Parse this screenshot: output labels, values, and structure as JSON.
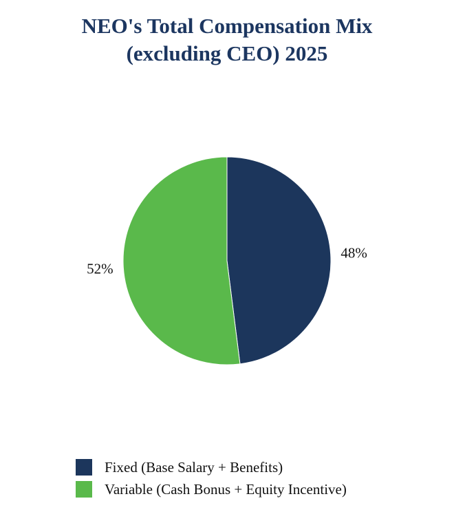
{
  "chart_data": {
    "type": "pie",
    "title_lines": [
      "NEO's Total Compensation Mix",
      "(excluding CEO) 2025"
    ],
    "slices": [
      {
        "name": "Fixed (Base Salary + Benefits)",
        "value": 48,
        "label": "48%",
        "color": "#1c365c"
      },
      {
        "name": "Variable (Cash Bonus + Equity Incentive)",
        "value": 52,
        "label": "52%",
        "color": "#5ab94b"
      }
    ],
    "start_angle_deg": 0,
    "direction": "clockwise",
    "legend_placement": "bottom-left"
  }
}
